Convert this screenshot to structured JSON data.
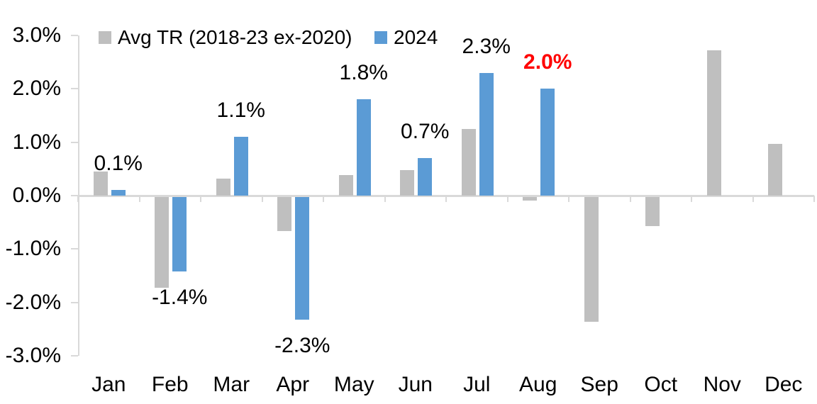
{
  "chart_data": {
    "type": "bar",
    "title": "",
    "categories": [
      "Jan",
      "Feb",
      "Mar",
      "Apr",
      "May",
      "Jun",
      "Jul",
      "Aug",
      "Sep",
      "Oct",
      "Nov",
      "Dec"
    ],
    "series": [
      {
        "name": "Avg TR (2018-23 ex-2020)",
        "color": "#bfbfbf",
        "values": [
          0.45,
          -1.7,
          0.32,
          -0.65,
          0.38,
          0.48,
          1.25,
          -0.07,
          -2.35,
          -0.55,
          2.72,
          0.97
        ]
      },
      {
        "name": "2024",
        "color": "#5b9bd5",
        "values": [
          0.1,
          -1.4,
          1.1,
          -2.3,
          1.8,
          0.7,
          2.3,
          2.0,
          null,
          null,
          null,
          null
        ],
        "data_labels": [
          "0.1%",
          "-1.4%",
          "1.1%",
          "-2.3%",
          "1.8%",
          "0.7%",
          "2.3%",
          "2.0%",
          null,
          null,
          null,
          null
        ]
      }
    ],
    "ylim": [
      -3,
      3
    ],
    "yticks": [
      3,
      2,
      1,
      0,
      -1,
      -2,
      -3
    ],
    "ytick_labels": [
      "3.0%",
      "2.0%",
      "1.0%",
      "0.0%",
      "-1.0%",
      "-2.0%",
      "-3.0%"
    ],
    "grid": false,
    "legend_position": "top",
    "axis_color": "#d9d9d9",
    "text_color": "#000000",
    "highlight_label": {
      "series": "2024",
      "category": "Aug",
      "text": "2.0%",
      "color": "#ff0000",
      "bold": true
    }
  }
}
